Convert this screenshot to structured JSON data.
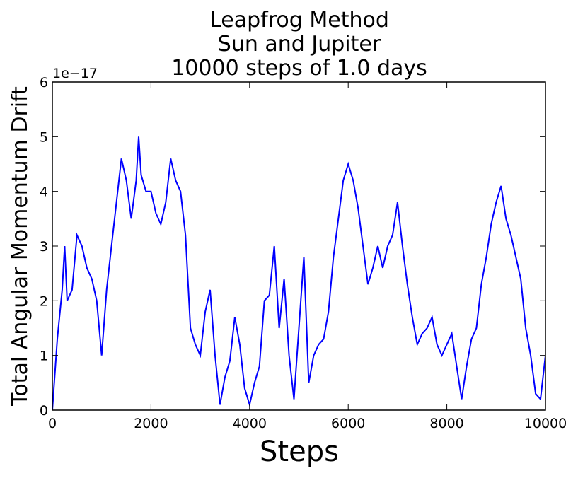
{
  "chart_data": {
    "type": "line",
    "title_lines": [
      "Leapfrog Method",
      "Sun and Jupiter",
      "10000 steps of 1.0 days"
    ],
    "xlabel": "Steps",
    "ylabel": "Total Angular Momentum Drift",
    "y_offset_label": "1e−17",
    "xlim": [
      0,
      10000
    ],
    "ylim": [
      0,
      6
    ],
    "y_units": "1e-17",
    "x_ticks": [
      0,
      2000,
      4000,
      6000,
      8000,
      10000
    ],
    "x_tick_labels": [
      "0",
      "2000",
      "4000",
      "6000",
      "8000",
      "10000"
    ],
    "y_ticks": [
      0,
      1,
      2,
      3,
      4,
      5,
      6
    ],
    "y_tick_labels": [
      "0",
      "1",
      "2",
      "3",
      "4",
      "5",
      "6"
    ],
    "grid": false,
    "line_color": "#0000ff",
    "series": [
      {
        "values": [
          [
            0,
            0
          ],
          [
            100,
            1.3
          ],
          [
            200,
            2.2
          ],
          [
            250,
            3.0
          ],
          [
            300,
            2.0
          ],
          [
            400,
            2.2
          ],
          [
            500,
            3.2
          ],
          [
            600,
            3.0
          ],
          [
            700,
            2.6
          ],
          [
            800,
            2.4
          ],
          [
            900,
            2.0
          ],
          [
            1000,
            1.0
          ],
          [
            1100,
            2.2
          ],
          [
            1200,
            3.0
          ],
          [
            1300,
            3.8
          ],
          [
            1400,
            4.6
          ],
          [
            1500,
            4.2
          ],
          [
            1600,
            3.5
          ],
          [
            1700,
            4.2
          ],
          [
            1750,
            5.0
          ],
          [
            1800,
            4.3
          ],
          [
            1900,
            4.0
          ],
          [
            2000,
            4.0
          ],
          [
            2100,
            3.6
          ],
          [
            2200,
            3.4
          ],
          [
            2300,
            3.8
          ],
          [
            2400,
            4.6
          ],
          [
            2500,
            4.2
          ],
          [
            2600,
            4.0
          ],
          [
            2700,
            3.2
          ],
          [
            2800,
            1.5
          ],
          [
            2900,
            1.2
          ],
          [
            3000,
            1.0
          ],
          [
            3100,
            1.8
          ],
          [
            3200,
            2.2
          ],
          [
            3300,
            1.0
          ],
          [
            3400,
            0.1
          ],
          [
            3500,
            0.6
          ],
          [
            3600,
            0.9
          ],
          [
            3700,
            1.7
          ],
          [
            3800,
            1.2
          ],
          [
            3900,
            0.4
          ],
          [
            4000,
            0.1
          ],
          [
            4100,
            0.5
          ],
          [
            4200,
            0.8
          ],
          [
            4300,
            2.0
          ],
          [
            4400,
            2.1
          ],
          [
            4500,
            3.0
          ],
          [
            4600,
            1.5
          ],
          [
            4700,
            2.4
          ],
          [
            4800,
            1.0
          ],
          [
            4900,
            0.2
          ],
          [
            5000,
            1.5
          ],
          [
            5100,
            2.8
          ],
          [
            5200,
            0.5
          ],
          [
            5300,
            1.0
          ],
          [
            5400,
            1.2
          ],
          [
            5500,
            1.3
          ],
          [
            5600,
            1.8
          ],
          [
            5700,
            2.8
          ],
          [
            5800,
            3.5
          ],
          [
            5900,
            4.2
          ],
          [
            6000,
            4.5
          ],
          [
            6100,
            4.2
          ],
          [
            6200,
            3.7
          ],
          [
            6300,
            3.0
          ],
          [
            6400,
            2.3
          ],
          [
            6500,
            2.6
          ],
          [
            6600,
            3.0
          ],
          [
            6700,
            2.6
          ],
          [
            6800,
            3.0
          ],
          [
            6900,
            3.2
          ],
          [
            7000,
            3.8
          ],
          [
            7100,
            3.0
          ],
          [
            7200,
            2.3
          ],
          [
            7300,
            1.7
          ],
          [
            7400,
            1.2
          ],
          [
            7500,
            1.4
          ],
          [
            7600,
            1.5
          ],
          [
            7700,
            1.7
          ],
          [
            7800,
            1.2
          ],
          [
            7900,
            1.0
          ],
          [
            8000,
            1.2
          ],
          [
            8100,
            1.4
          ],
          [
            8200,
            0.8
          ],
          [
            8300,
            0.2
          ],
          [
            8400,
            0.8
          ],
          [
            8500,
            1.3
          ],
          [
            8600,
            1.5
          ],
          [
            8700,
            2.3
          ],
          [
            8800,
            2.8
          ],
          [
            8900,
            3.4
          ],
          [
            9000,
            3.8
          ],
          [
            9100,
            4.1
          ],
          [
            9200,
            3.5
          ],
          [
            9300,
            3.2
          ],
          [
            9400,
            2.8
          ],
          [
            9500,
            2.4
          ],
          [
            9600,
            1.5
          ],
          [
            9700,
            1.0
          ],
          [
            9800,
            0.3
          ],
          [
            9900,
            0.2
          ],
          [
            10000,
            1.0
          ]
        ]
      }
    ]
  }
}
